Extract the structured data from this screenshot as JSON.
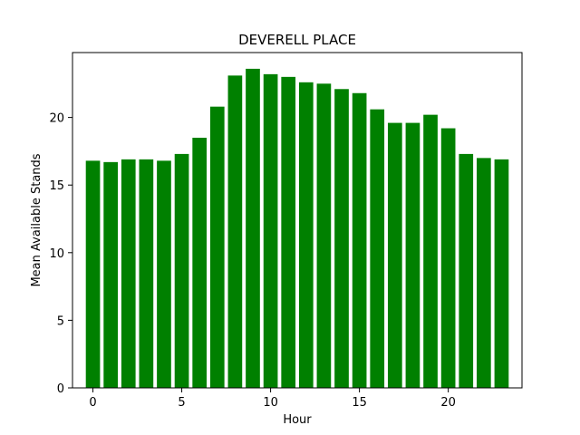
{
  "chart_data": {
    "type": "bar",
    "title": "DEVERELL PLACE",
    "xlabel": "Hour",
    "ylabel": "Mean Available Stands",
    "x": [
      0,
      1,
      2,
      3,
      4,
      5,
      6,
      7,
      8,
      9,
      10,
      11,
      12,
      13,
      14,
      15,
      16,
      17,
      18,
      19,
      20,
      21,
      22,
      23
    ],
    "values": [
      16.8,
      16.7,
      16.9,
      16.9,
      16.8,
      17.3,
      18.5,
      20.8,
      23.1,
      23.6,
      23.2,
      23.0,
      22.6,
      22.5,
      22.1,
      21.8,
      20.6,
      19.6,
      19.6,
      20.2,
      19.2,
      17.3,
      17.0,
      16.9
    ],
    "xticks": [
      0,
      5,
      10,
      15,
      20
    ],
    "yticks": [
      0,
      5,
      10,
      15,
      20
    ],
    "xlim": [
      -1.15,
      24.15
    ],
    "ylim": [
      0,
      24.8
    ],
    "bar_color": "#008000",
    "grid": false,
    "legend": "none"
  }
}
